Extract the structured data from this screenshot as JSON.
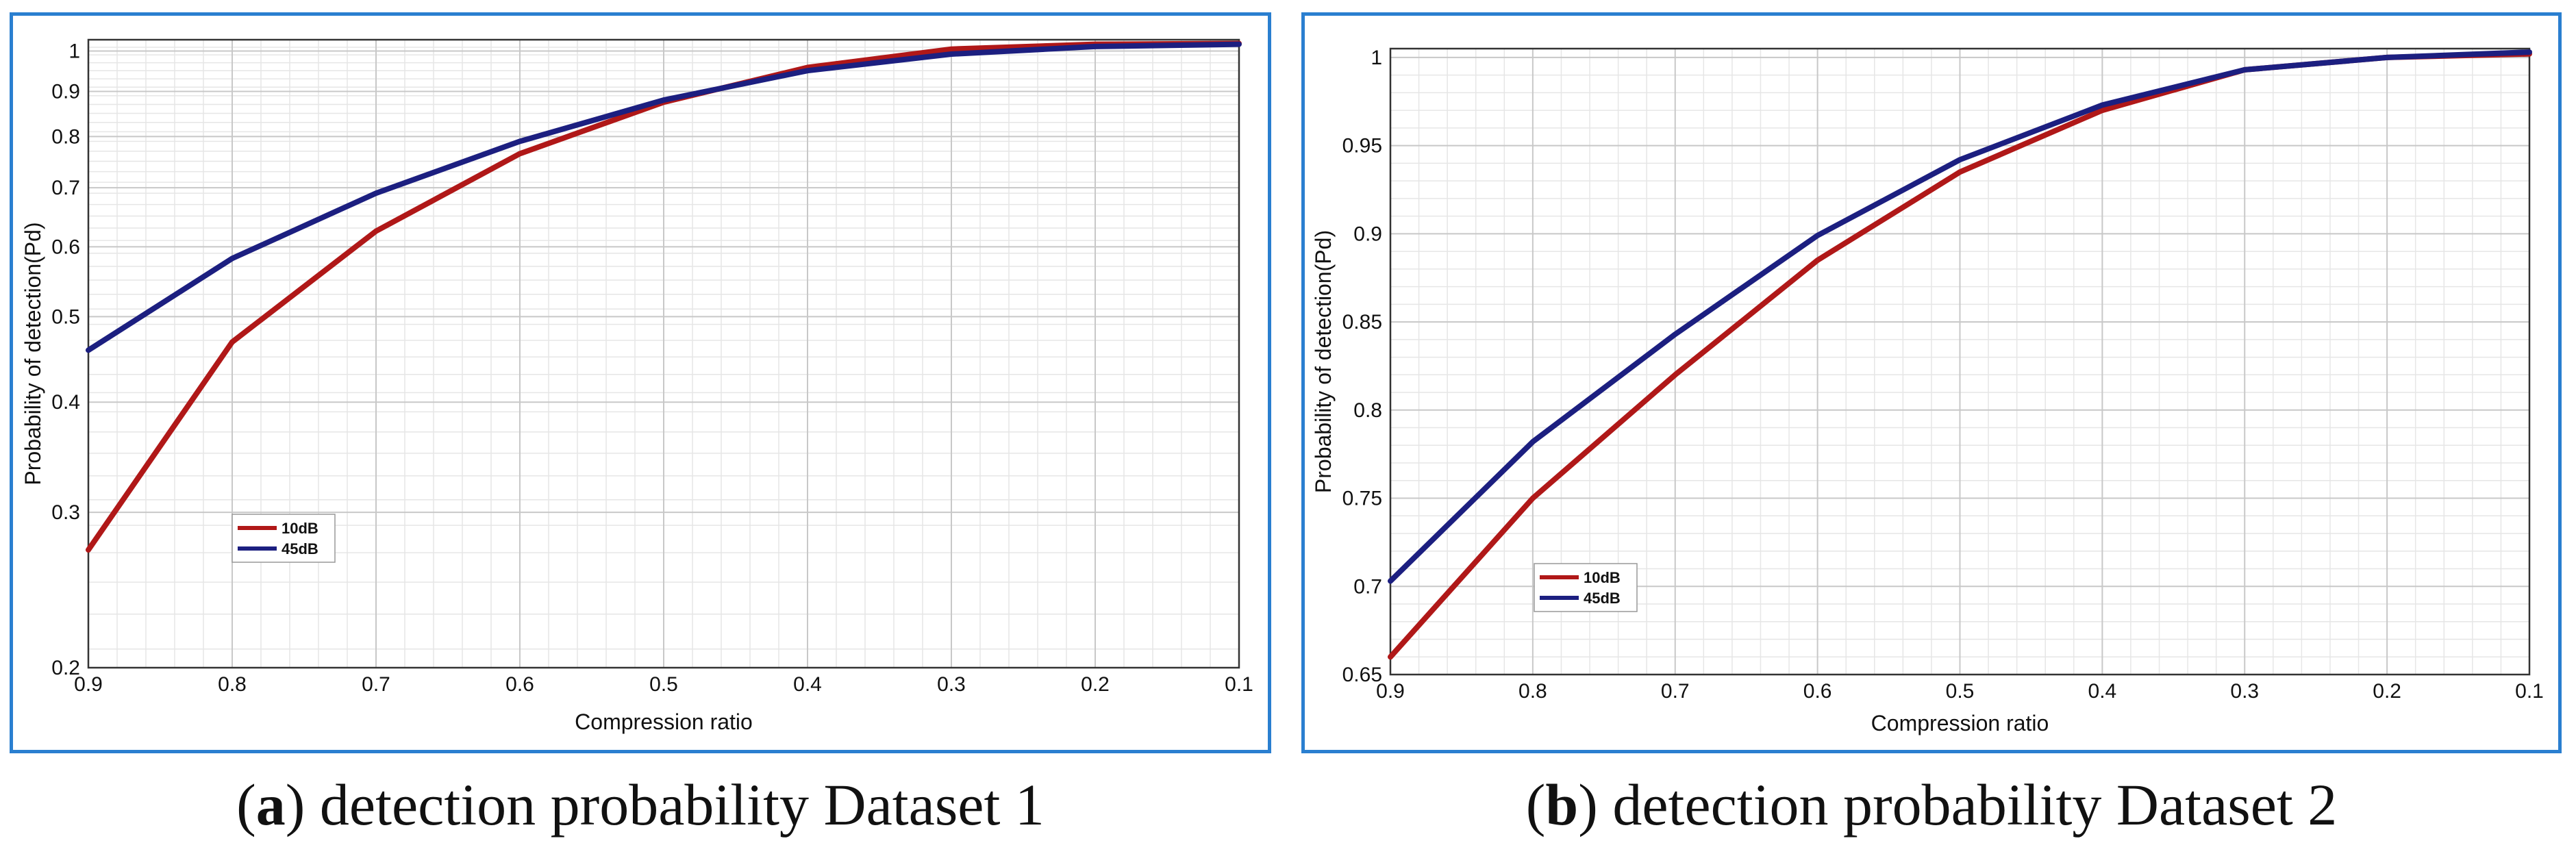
{
  "captions": [
    {
      "letter": "a",
      "text": "detection probability Dataset 1"
    },
    {
      "letter": "b",
      "text": "detection probability Dataset 2"
    }
  ],
  "chart_data": [
    {
      "type": "line",
      "title": "",
      "xlabel": "Compression ratio",
      "ylabel": "Probability of detection(Pd)",
      "x": [
        0.9,
        0.8,
        0.7,
        0.6,
        0.5,
        0.4,
        0.3,
        0.2,
        0.1
      ],
      "xlim": [
        0.9,
        0.1
      ],
      "xticks": [
        "0.9",
        "0.8",
        "0.7",
        "0.6",
        "0.5",
        "0.4",
        "0.3",
        "0.2",
        "0.1"
      ],
      "yscale": "log",
      "ylim": [
        0.2,
        1.03
      ],
      "yticks": [
        0.2,
        0.3,
        0.4,
        0.5,
        0.6,
        0.7,
        0.8,
        0.9,
        1
      ],
      "yticklabels": [
        "0.2",
        "0.3",
        "0.4",
        "0.5",
        "0.6",
        "0.7",
        "0.8",
        "0.9",
        "1"
      ],
      "grid": true,
      "legend": "lower-left",
      "series": [
        {
          "name": "10dB",
          "color": "#b01818",
          "values": [
            0.272,
            0.468,
            0.625,
            0.765,
            0.875,
            0.958,
            1.005,
            1.018,
            1.02
          ]
        },
        {
          "name": "45dB",
          "color": "#1c1f80",
          "values": [
            0.458,
            0.582,
            0.69,
            0.79,
            0.88,
            0.95,
            0.992,
            1.012,
            1.018
          ]
        }
      ]
    },
    {
      "type": "line",
      "title": "",
      "xlabel": "Compression ratio",
      "ylabel": "Probability of detection(Pd)",
      "x": [
        0.9,
        0.8,
        0.7,
        0.6,
        0.5,
        0.4,
        0.3,
        0.2,
        0.1
      ],
      "xlim": [
        0.9,
        0.1
      ],
      "xticks": [
        "0.9",
        "0.8",
        "0.7",
        "0.6",
        "0.5",
        "0.4",
        "0.3",
        "0.2",
        "0.1"
      ],
      "yscale": "linear",
      "ylim": [
        0.65,
        1.005
      ],
      "yticks": [
        0.65,
        0.7,
        0.75,
        0.8,
        0.85,
        0.9,
        0.95,
        1
      ],
      "yticklabels": [
        "0.65",
        "0.7",
        "0.75",
        "0.8",
        "0.85",
        "0.9",
        "0.95",
        "1"
      ],
      "grid": true,
      "legend": "lower-left",
      "series": [
        {
          "name": "10dB",
          "color": "#b01818",
          "values": [
            0.66,
            0.75,
            0.82,
            0.885,
            0.935,
            0.97,
            0.993,
            1.0,
            1.002
          ]
        },
        {
          "name": "45dB",
          "color": "#1c1f80",
          "values": [
            0.703,
            0.782,
            0.843,
            0.899,
            0.942,
            0.973,
            0.993,
            1.0,
            1.003
          ]
        }
      ]
    }
  ]
}
